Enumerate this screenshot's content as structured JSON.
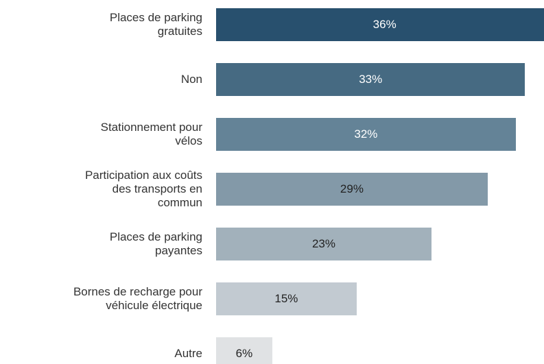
{
  "chart_data": {
    "type": "bar",
    "orientation": "horizontal",
    "categories": [
      "Places de parking\ngratuites",
      "Non",
      "Stationnement pour\nvélos",
      "Participation aux coûts\ndes transports en\ncommun",
      "Places de parking\npayantes",
      "Bornes de recharge pour\nvéhicule électrique",
      "Autre"
    ],
    "values": [
      36,
      33,
      32,
      29,
      23,
      15,
      6
    ],
    "value_labels": [
      "36%",
      "33%",
      "32%",
      "29%",
      "23%",
      "15%",
      "6%"
    ],
    "colors": [
      "#28506e",
      "#466a82",
      "#648397",
      "#8399a8",
      "#a2b1bb",
      "#c2cad1",
      "#e0e2e4"
    ]
  }
}
